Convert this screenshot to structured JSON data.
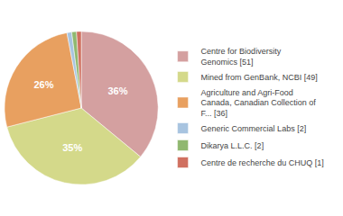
{
  "chart_data": {
    "type": "pie",
    "categories": [
      "Centre for Biodiversity\nGenomics [51]",
      "Mined from GenBank, NCBI [49]",
      "Agriculture and Agri-Food\nCanada, Canadian Collection of\nF... [36]",
      "Generic Commercial Labs [2]",
      "Dikarya L.L.C. [2]",
      "Centre de recherche du CHUQ [1]"
    ],
    "values": [
      36,
      35,
      26,
      1,
      1,
      1
    ],
    "value_labels": [
      "36%",
      "35%",
      "26%",
      null,
      null,
      null
    ],
    "colors": [
      "#d4a0a0",
      "#d4d98a",
      "#e8a060",
      "#a8c4e0",
      "#90b870",
      "#d07060"
    ],
    "data_labels": true,
    "legend": "right"
  }
}
